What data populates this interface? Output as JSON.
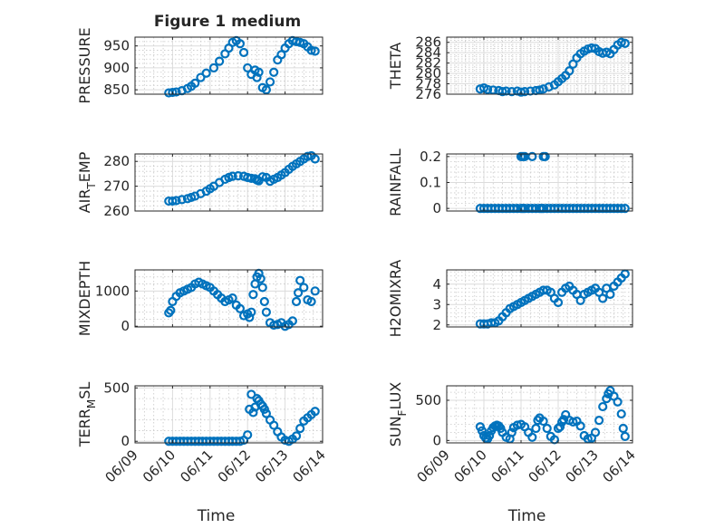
{
  "figure_title": "Figure 1 medium",
  "colors": {
    "marker": "#0072BD",
    "axis": "#262626",
    "background": "#ffffff"
  },
  "chart_data": [
    {
      "type": "scatter",
      "title": "Figure 1 medium",
      "ylabel": {
        "main": "PRESSURE",
        "sub": "",
        "tail": ""
      },
      "xlabel": "",
      "xlim": [
        "06/09",
        "06/14"
      ],
      "ylim": [
        840,
        970
      ],
      "yticks": [
        850,
        900,
        950
      ],
      "ytick_labels": [
        "850",
        "900",
        "950"
      ],
      "x_tick_labels_shown": false,
      "grid": "on",
      "series": [
        {
          "x": [
            0.9,
            1.0,
            1.1,
            1.25,
            1.4,
            1.5,
            1.6,
            1.75,
            1.9,
            2.1,
            2.25,
            2.4,
            2.5,
            2.6,
            2.7,
            2.8,
            2.9,
            3.0,
            3.1,
            3.2,
            3.25,
            3.3,
            3.4,
            3.5,
            3.6,
            3.7,
            3.8,
            3.9,
            4.0,
            4.1,
            4.2,
            4.3,
            4.4,
            4.5,
            4.6,
            4.7,
            4.8
          ],
          "y": [
            843,
            844,
            845,
            848,
            853,
            858,
            865,
            878,
            888,
            900,
            915,
            932,
            945,
            958,
            962,
            955,
            935,
            900,
            885,
            895,
            878,
            890,
            855,
            850,
            868,
            890,
            918,
            930,
            945,
            955,
            962,
            960,
            958,
            955,
            948,
            940,
            938
          ]
        }
      ]
    },
    {
      "type": "scatter",
      "ylabel": {
        "main": "THETA",
        "sub": "",
        "tail": ""
      },
      "xlabel": "",
      "xlim": [
        "06/09",
        "06/14"
      ],
      "ylim": [
        276,
        287
      ],
      "yticks": [
        276,
        278,
        280,
        282,
        284,
        286
      ],
      "ytick_labels": [
        "276",
        "278",
        "280",
        "282",
        "284",
        "286"
      ],
      "x_tick_labels_shown": false,
      "grid": "on",
      "series": [
        {
          "x": [
            0.9,
            1.0,
            1.1,
            1.25,
            1.4,
            1.5,
            1.6,
            1.75,
            1.9,
            2.0,
            2.1,
            2.25,
            2.4,
            2.5,
            2.6,
            2.75,
            2.9,
            3.0,
            3.1,
            3.2,
            3.3,
            3.4,
            3.5,
            3.6,
            3.7,
            3.8,
            3.9,
            4.0,
            4.1,
            4.2,
            4.3,
            4.4,
            4.5,
            4.6,
            4.7,
            4.8
          ],
          "y": [
            277.0,
            277.2,
            276.9,
            276.8,
            276.7,
            276.5,
            276.6,
            276.5,
            276.6,
            276.4,
            276.5,
            276.6,
            276.7,
            276.8,
            277.0,
            277.4,
            277.8,
            278.4,
            279.0,
            279.6,
            280.5,
            281.8,
            283.0,
            283.8,
            284.3,
            284.7,
            284.9,
            284.8,
            284.2,
            283.9,
            284.1,
            283.8,
            284.6,
            285.5,
            286.0,
            285.8
          ]
        }
      ]
    },
    {
      "type": "scatter",
      "ylabel": {
        "main": "AIR",
        "sub": "T",
        "tail": "EMP"
      },
      "xlabel": "",
      "xlim": [
        "06/09",
        "06/14"
      ],
      "ylim": [
        260,
        283
      ],
      "yticks": [
        260,
        270,
        280
      ],
      "ytick_labels": [
        "260",
        "270",
        "280"
      ],
      "x_tick_labels_shown": false,
      "grid": "on",
      "series": [
        {
          "x": [
            0.9,
            1.0,
            1.1,
            1.25,
            1.4,
            1.5,
            1.6,
            1.75,
            1.9,
            2.0,
            2.1,
            2.25,
            2.4,
            2.5,
            2.6,
            2.75,
            2.9,
            3.0,
            3.1,
            3.2,
            3.25,
            3.3,
            3.4,
            3.5,
            3.6,
            3.7,
            3.8,
            3.9,
            4.0,
            4.1,
            4.2,
            4.3,
            4.4,
            4.5,
            4.6,
            4.7,
            4.8
          ],
          "y": [
            264.0,
            264.0,
            264.2,
            264.6,
            265.0,
            265.5,
            266.0,
            267.0,
            268.0,
            269.0,
            270.0,
            271.5,
            272.8,
            273.5,
            274.0,
            274.2,
            274.0,
            273.5,
            273.2,
            273.0,
            272.5,
            272.2,
            273.8,
            273.5,
            272.0,
            272.8,
            273.5,
            274.5,
            275.5,
            276.8,
            278.0,
            279.0,
            280.0,
            281.0,
            282.0,
            282.3,
            281.0
          ]
        }
      ]
    },
    {
      "type": "scatter",
      "ylabel": {
        "main": "RAINFALL",
        "sub": "",
        "tail": ""
      },
      "xlabel": "",
      "xlim": [
        "06/09",
        "06/14"
      ],
      "ylim": [
        -0.01,
        0.21
      ],
      "yticks": [
        0,
        0.1,
        0.2
      ],
      "ytick_labels": [
        "0",
        "0.1",
        "0.2"
      ],
      "x_tick_labels_shown": false,
      "grid": "on",
      "series": [
        {
          "x": [
            0.9,
            1.0,
            1.1,
            1.2,
            1.3,
            1.4,
            1.5,
            1.6,
            1.7,
            1.8,
            1.9,
            2.0,
            2.05,
            2.1,
            2.2,
            2.3,
            2.4,
            2.5,
            2.55,
            2.6,
            2.7,
            2.8,
            2.9,
            3.0,
            3.1,
            3.2,
            3.3,
            3.4,
            3.5,
            3.6,
            3.7,
            3.8,
            3.9,
            4.0,
            4.1,
            4.2,
            4.3,
            4.4,
            4.5,
            4.6,
            4.7,
            4.8,
            2.0,
            2.05,
            2.1,
            2.3,
            2.6,
            2.65
          ],
          "y": [
            0,
            0,
            0,
            0,
            0,
            0,
            0,
            0,
            0,
            0,
            0,
            0,
            0,
            0,
            0,
            0,
            0,
            0,
            0,
            0,
            0,
            0,
            0,
            0,
            0,
            0,
            0,
            0,
            0,
            0,
            0,
            0,
            0,
            0,
            0,
            0,
            0,
            0,
            0,
            0,
            0,
            0,
            0.2,
            0.2,
            0.2,
            0.2,
            0.2,
            0.2
          ]
        }
      ]
    },
    {
      "type": "scatter",
      "ylabel": {
        "main": "MIXDEPTH",
        "sub": "",
        "tail": ""
      },
      "xlabel": "",
      "xlim": [
        "06/09",
        "06/14"
      ],
      "ylim": [
        -20,
        1600
      ],
      "yticks": [
        0,
        1000
      ],
      "ytick_labels": [
        "0",
        "1000"
      ],
      "x_tick_labels_shown": false,
      "grid": "on",
      "series": [
        {
          "x": [
            0.9,
            0.95,
            1.0,
            1.1,
            1.2,
            1.3,
            1.4,
            1.5,
            1.6,
            1.7,
            1.8,
            1.9,
            2.0,
            2.1,
            2.2,
            2.3,
            2.4,
            2.5,
            2.6,
            2.7,
            2.8,
            2.9,
            3.0,
            3.05,
            3.1,
            3.15,
            3.2,
            3.25,
            3.3,
            3.35,
            3.4,
            3.45,
            3.5,
            3.6,
            3.7,
            3.8,
            3.9,
            4.0,
            4.1,
            4.2,
            4.3,
            4.35,
            4.4,
            4.5,
            4.6,
            4.7,
            4.8
          ],
          "y": [
            380,
            450,
            700,
            850,
            950,
            1000,
            1050,
            1100,
            1200,
            1250,
            1200,
            1150,
            1100,
            1000,
            900,
            800,
            700,
            750,
            800,
            600,
            500,
            300,
            350,
            250,
            400,
            900,
            1200,
            1400,
            1500,
            1350,
            1100,
            700,
            400,
            100,
            30,
            50,
            100,
            0,
            50,
            150,
            700,
            950,
            1300,
            1100,
            750,
            700,
            1000
          ]
        }
      ]
    },
    {
      "type": "scatter",
      "ylabel": {
        "main": "H2OMIXRA",
        "sub": "",
        "tail": ""
      },
      "xlabel": "",
      "xlim": [
        "06/09",
        "06/14"
      ],
      "ylim": [
        1.9,
        4.7
      ],
      "yticks": [
        2,
        3,
        4
      ],
      "ytick_labels": [
        "2",
        "3",
        "4"
      ],
      "x_tick_labels_shown": false,
      "grid": "on",
      "series": [
        {
          "x": [
            0.9,
            1.0,
            1.1,
            1.2,
            1.3,
            1.4,
            1.5,
            1.6,
            1.7,
            1.8,
            1.9,
            2.0,
            2.1,
            2.2,
            2.3,
            2.4,
            2.5,
            2.6,
            2.7,
            2.8,
            2.9,
            3.0,
            3.1,
            3.2,
            3.3,
            3.4,
            3.5,
            3.6,
            3.7,
            3.8,
            3.9,
            4.0,
            4.1,
            4.2,
            4.3,
            4.4,
            4.5,
            4.6,
            4.7,
            4.8
          ],
          "y": [
            2.05,
            2.05,
            2.05,
            2.1,
            2.1,
            2.2,
            2.4,
            2.6,
            2.8,
            2.9,
            3.0,
            3.1,
            3.2,
            3.3,
            3.4,
            3.5,
            3.6,
            3.7,
            3.7,
            3.6,
            3.3,
            3.1,
            3.6,
            3.8,
            3.9,
            3.7,
            3.5,
            3.2,
            3.5,
            3.6,
            3.7,
            3.8,
            3.6,
            3.3,
            3.8,
            3.5,
            3.9,
            4.1,
            4.3,
            4.5
          ]
        }
      ]
    },
    {
      "type": "scatter",
      "ylabel": {
        "main": "TERR",
        "sub": "M",
        "tail": "SL"
      },
      "xlabel": "Time",
      "xlim": [
        "06/09",
        "06/14"
      ],
      "xtick_labels": [
        "06/09",
        "06/10",
        "06/11",
        "06/12",
        "06/13",
        "06/14"
      ],
      "ylim": [
        -15,
        520
      ],
      "yticks": [
        0,
        500
      ],
      "ytick_labels": [
        "0",
        "500"
      ],
      "grid": "on",
      "series": [
        {
          "x": [
            0.9,
            1.0,
            1.1,
            1.2,
            1.3,
            1.4,
            1.5,
            1.6,
            1.7,
            1.8,
            1.9,
            2.0,
            2.1,
            2.2,
            2.3,
            2.4,
            2.5,
            2.6,
            2.7,
            2.8,
            2.9,
            3.0,
            3.05,
            3.1,
            3.15,
            3.2,
            3.25,
            3.3,
            3.35,
            3.4,
            3.45,
            3.5,
            3.6,
            3.7,
            3.8,
            3.9,
            4.0,
            4.1,
            4.2,
            4.3,
            4.4,
            4.5,
            4.6,
            4.7,
            4.8
          ],
          "y": [
            0,
            0,
            0,
            0,
            0,
            0,
            0,
            0,
            0,
            0,
            0,
            0,
            0,
            0,
            0,
            0,
            0,
            0,
            0,
            0,
            10,
            60,
            300,
            440,
            270,
            320,
            400,
            380,
            350,
            330,
            300,
            260,
            200,
            150,
            90,
            40,
            10,
            0,
            20,
            50,
            120,
            190,
            220,
            250,
            280
          ]
        }
      ]
    },
    {
      "type": "scatter",
      "ylabel": {
        "main": "SUN",
        "sub": "F",
        "tail": "LUX"
      },
      "xlabel": "Time",
      "xlim": [
        "06/09",
        "06/14"
      ],
      "xtick_labels": [
        "06/09",
        "06/10",
        "06/11",
        "06/12",
        "06/13",
        "06/14"
      ],
      "ylim": [
        -30,
        680
      ],
      "yticks": [
        0,
        500
      ],
      "ytick_labels": [
        "0",
        "500"
      ],
      "grid": "on",
      "series": [
        {
          "x": [
            0.9,
            0.95,
            1.0,
            1.05,
            1.1,
            1.15,
            1.2,
            1.25,
            1.3,
            1.35,
            1.4,
            1.45,
            1.5,
            1.6,
            1.7,
            1.75,
            1.8,
            1.9,
            2.0,
            2.1,
            2.2,
            2.3,
            2.4,
            2.45,
            2.5,
            2.6,
            2.7,
            2.8,
            2.9,
            3.0,
            3.05,
            3.1,
            3.15,
            3.2,
            3.3,
            3.4,
            3.5,
            3.6,
            3.7,
            3.8,
            3.9,
            4.0,
            4.1,
            4.2,
            4.3,
            4.35,
            4.4,
            4.5,
            4.6,
            4.7,
            4.75,
            4.8
          ],
          "y": [
            170,
            120,
            60,
            30,
            20,
            60,
            120,
            160,
            180,
            190,
            180,
            150,
            100,
            40,
            20,
            100,
            160,
            190,
            200,
            170,
            100,
            40,
            150,
            250,
            280,
            240,
            150,
            50,
            10,
            150,
            170,
            230,
            260,
            320,
            250,
            230,
            240,
            180,
            60,
            20,
            30,
            100,
            250,
            420,
            520,
            580,
            620,
            550,
            480,
            330,
            150,
            50
          ]
        }
      ]
    }
  ]
}
